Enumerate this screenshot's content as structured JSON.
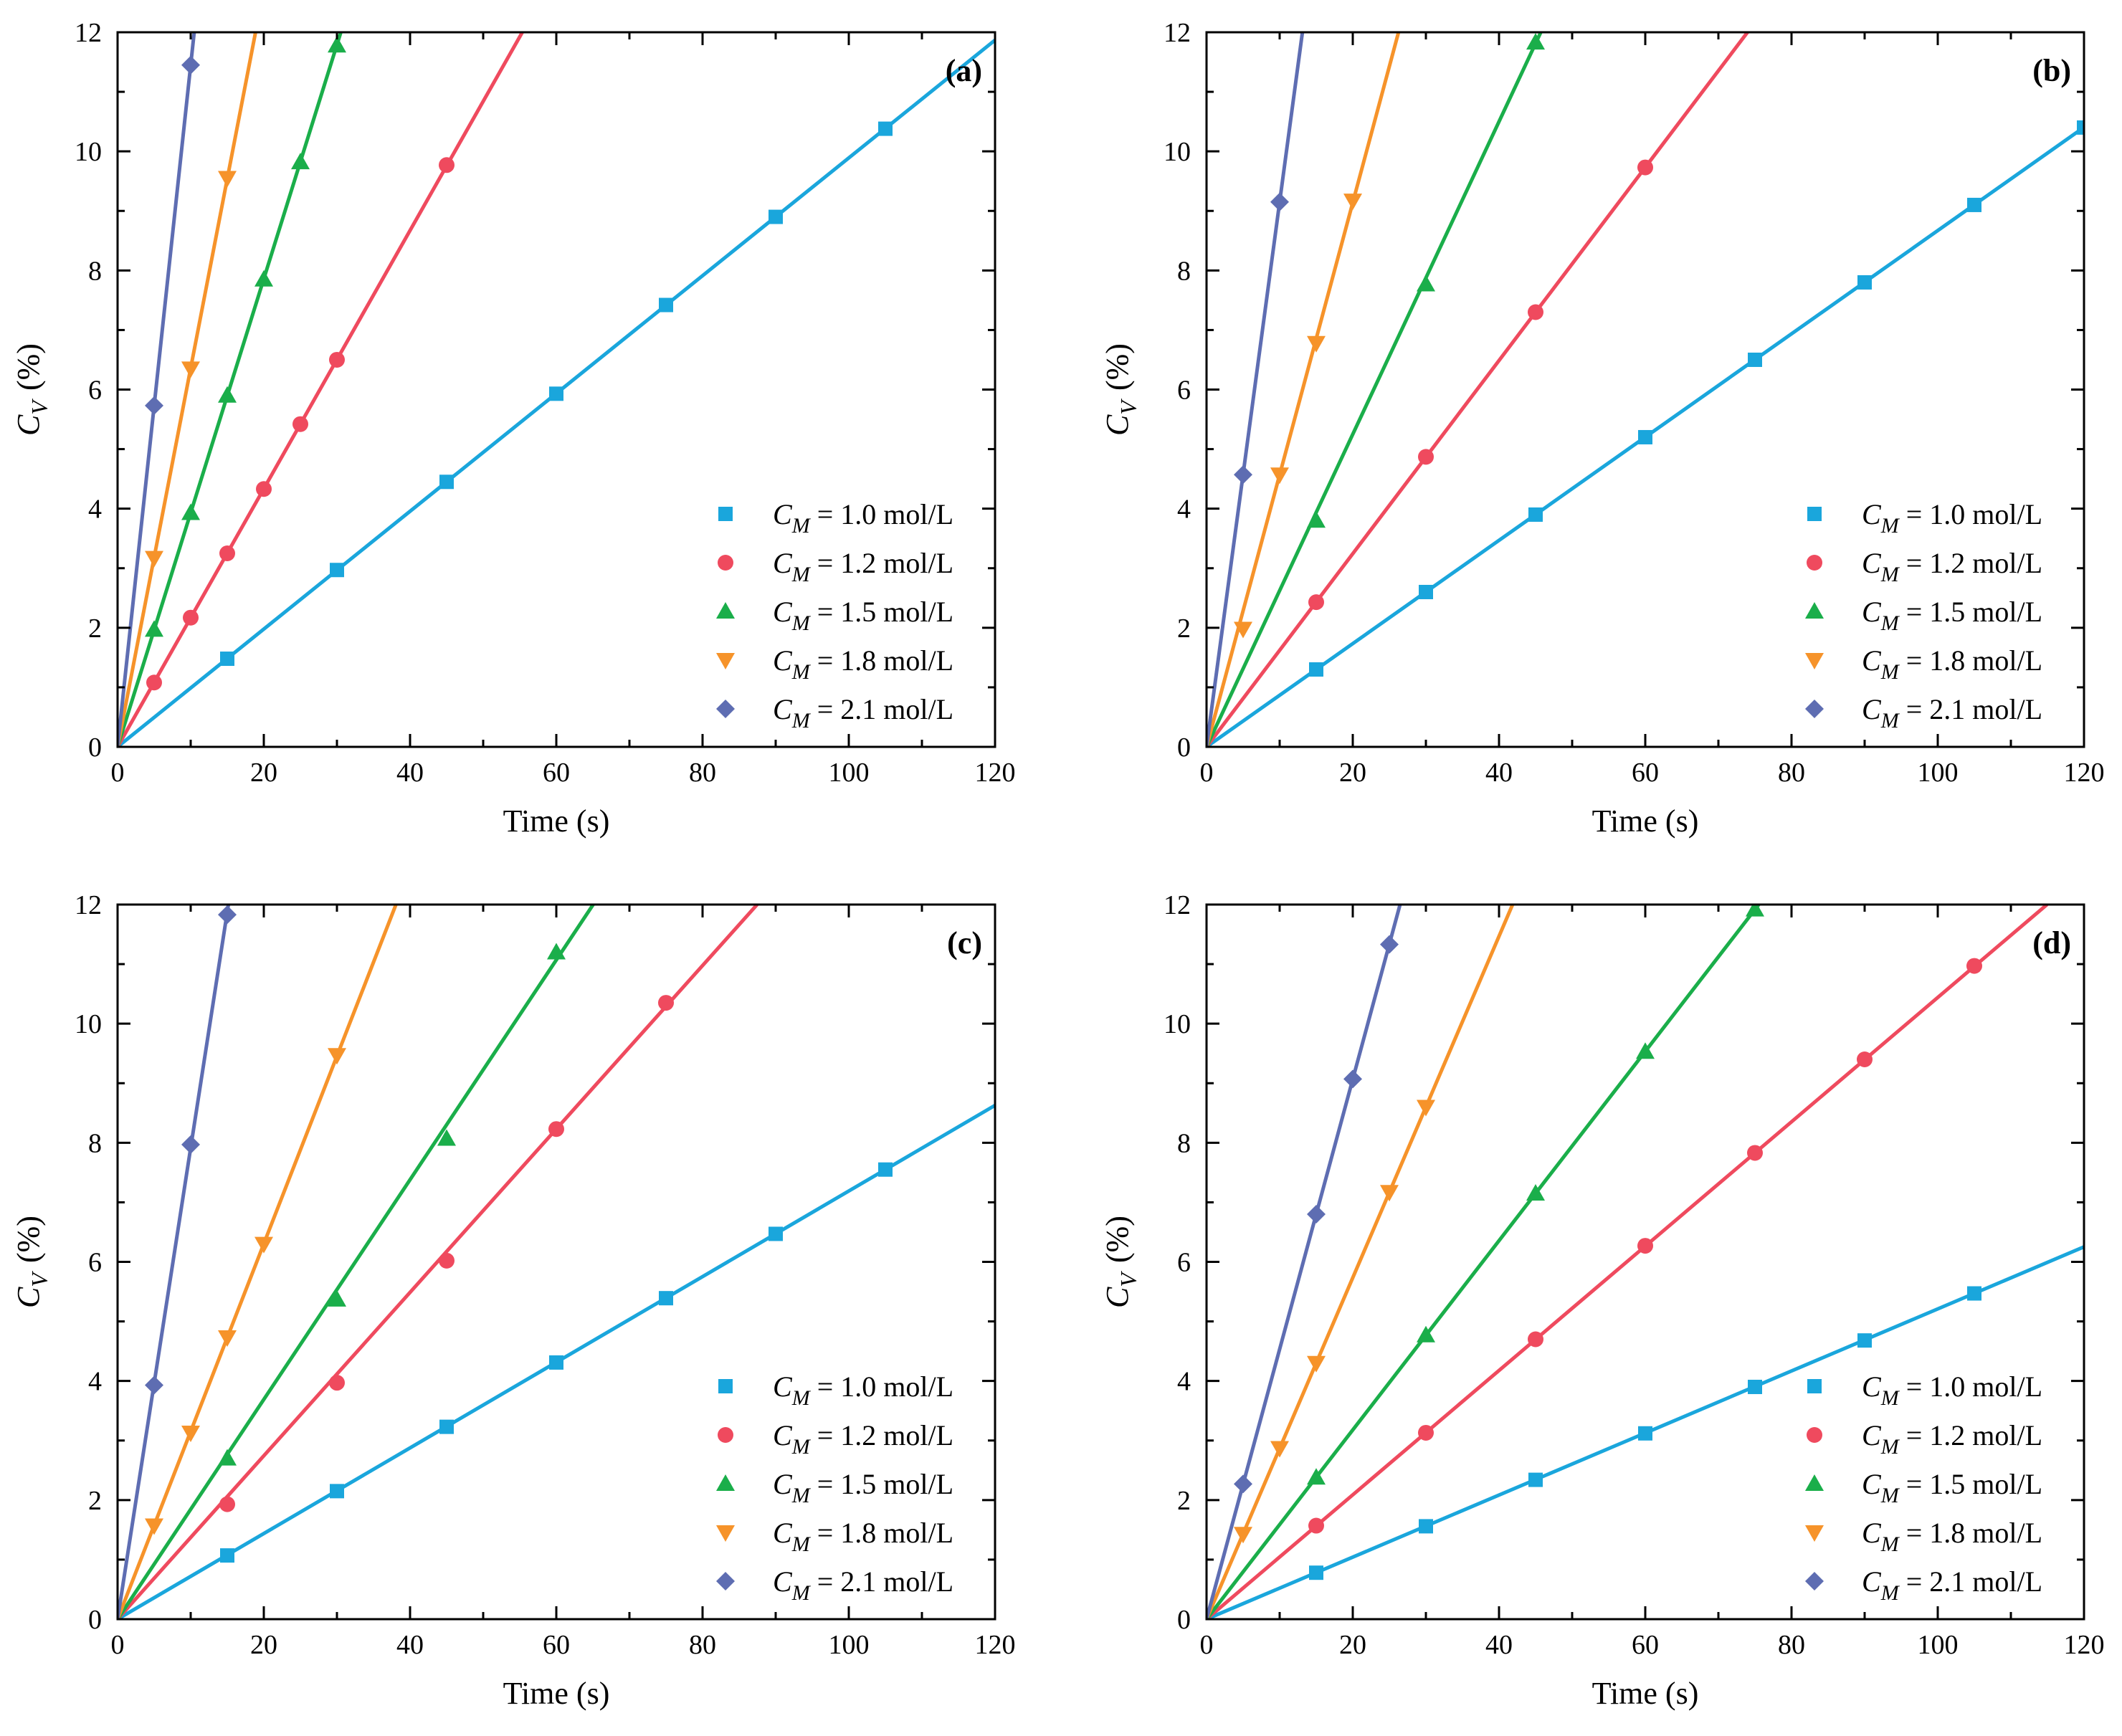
{
  "colors": {
    "1.0": "#1aa6dc",
    "1.2": "#ef4a5e",
    "1.5": "#1aae4a",
    "1.8": "#f6932a",
    "2.1": "#5e6db2"
  },
  "legend_entries": [
    {
      "prefix": "C",
      "sub": "M",
      "text": " = 1.0 mol/L",
      "key": "1.0",
      "marker": "square"
    },
    {
      "prefix": "C",
      "sub": "M",
      "text": " = 1.2 mol/L",
      "key": "1.2",
      "marker": "circle"
    },
    {
      "prefix": "C",
      "sub": "M",
      "text": " = 1.5 mol/L",
      "key": "1.5",
      "marker": "triangle-up"
    },
    {
      "prefix": "C",
      "sub": "M",
      "text": " = 1.8 mol/L",
      "key": "1.8",
      "marker": "triangle-down"
    },
    {
      "prefix": "C",
      "sub": "M",
      "text": " = 2.1 mol/L",
      "key": "2.1",
      "marker": "diamond"
    }
  ],
  "chart_data": [
    {
      "type": "scatter",
      "title": "(a)",
      "xlabel": "Time (s)",
      "ylabel_var": "C",
      "ylabel_sub": "V",
      "ylabel_unit": "(%)",
      "xlim": [
        0,
        120
      ],
      "ylim": [
        0,
        12
      ],
      "xticks": [
        "0",
        "20",
        "40",
        "60",
        "80",
        "100",
        "120"
      ],
      "yticks": [
        "0",
        "2",
        "4",
        "6",
        "8",
        "10",
        "12"
      ],
      "series": [
        {
          "key": "1.0",
          "x": [
            15,
            30,
            45,
            60,
            75,
            90,
            105
          ],
          "y": [
            1.48,
            2.97,
            4.45,
            5.93,
            7.42,
            8.9,
            10.38
          ],
          "slope": 0.0989
        },
        {
          "key": "1.2",
          "x": [
            5,
            10,
            15,
            20,
            25,
            30,
            45
          ],
          "y": [
            1.08,
            2.17,
            3.25,
            4.33,
            5.42,
            6.5,
            9.77
          ],
          "slope": 0.2168
        },
        {
          "key": "1.5",
          "x": [
            5,
            10,
            15,
            20,
            25,
            30
          ],
          "y": [
            1.97,
            3.93,
            5.9,
            7.85,
            9.82,
            11.78
          ],
          "slope": 0.393
        },
        {
          "key": "1.8",
          "x": [
            5,
            10,
            15
          ],
          "y": [
            3.17,
            6.35,
            9.55
          ],
          "slope": 0.636
        },
        {
          "key": "2.1",
          "x": [
            5,
            10
          ],
          "y": [
            5.73,
            11.45
          ],
          "slope": 1.145
        }
      ]
    },
    {
      "type": "scatter",
      "title": "(b)",
      "xlabel": "Time (s)",
      "ylabel_var": "C",
      "ylabel_sub": "V",
      "ylabel_unit": "(%)",
      "xlim": [
        0,
        120
      ],
      "ylim": [
        0,
        12
      ],
      "xticks": [
        "0",
        "20",
        "40",
        "60",
        "80",
        "100",
        "120"
      ],
      "yticks": [
        "0",
        "2",
        "4",
        "6",
        "8",
        "10",
        "12"
      ],
      "series": [
        {
          "key": "1.0",
          "x": [
            15,
            30,
            45,
            60,
            75,
            90,
            105,
            120
          ],
          "y": [
            1.3,
            2.6,
            3.9,
            5.2,
            6.5,
            7.8,
            9.1,
            10.4
          ],
          "slope": 0.0867
        },
        {
          "key": "1.2",
          "x": [
            15,
            30,
            45,
            60
          ],
          "y": [
            2.43,
            4.87,
            7.3,
            9.73
          ],
          "slope": 0.1622
        },
        {
          "key": "1.5",
          "x": [
            15,
            30,
            45
          ],
          "y": [
            3.8,
            7.77,
            11.83
          ],
          "slope": 0.2625
        },
        {
          "key": "1.8",
          "x": [
            5,
            10,
            15,
            20
          ],
          "y": [
            1.98,
            4.57,
            6.78,
            9.17
          ],
          "slope": 0.457
        },
        {
          "key": "2.1",
          "x": [
            5,
            10
          ],
          "y": [
            4.57,
            9.15
          ],
          "slope": 0.915
        }
      ]
    },
    {
      "type": "scatter",
      "title": "(c)",
      "xlabel": "Time (s)",
      "ylabel_var": "C",
      "ylabel_sub": "V",
      "ylabel_unit": "(%)",
      "xlim": [
        0,
        120
      ],
      "ylim": [
        0,
        12
      ],
      "xticks": [
        "0",
        "20",
        "40",
        "60",
        "80",
        "100",
        "120"
      ],
      "yticks": [
        "0",
        "2",
        "4",
        "6",
        "8",
        "10",
        "12"
      ],
      "series": [
        {
          "key": "1.0",
          "x": [
            15,
            30,
            45,
            60,
            75,
            90,
            105
          ],
          "y": [
            1.07,
            2.15,
            3.23,
            4.31,
            5.39,
            6.47,
            7.55
          ],
          "slope": 0.0719
        },
        {
          "key": "1.2",
          "x": [
            15,
            30,
            45,
            60,
            75
          ],
          "y": [
            1.93,
            3.97,
            6.02,
            8.23,
            10.35
          ],
          "slope": 0.1372
        },
        {
          "key": "1.5",
          "x": [
            15,
            30,
            45,
            60
          ],
          "y": [
            2.7,
            5.37,
            8.07,
            11.2
          ],
          "slope": 0.1845
        },
        {
          "key": "1.8",
          "x": [
            5,
            10,
            15,
            20,
            30
          ],
          "y": [
            1.57,
            3.13,
            4.73,
            6.3,
            9.47
          ],
          "slope": 0.3152
        },
        {
          "key": "2.1",
          "x": [
            5,
            10,
            15
          ],
          "y": [
            3.93,
            7.97,
            11.83
          ],
          "slope": 0.7917
        }
      ]
    },
    {
      "type": "scatter",
      "title": "(d)",
      "xlabel": "Time (s)",
      "ylabel_var": "C",
      "ylabel_sub": "V",
      "ylabel_unit": "(%)",
      "xlim": [
        0,
        120
      ],
      "ylim": [
        0,
        12
      ],
      "xticks": [
        "0",
        "20",
        "40",
        "60",
        "80",
        "100",
        "120"
      ],
      "yticks": [
        "0",
        "2",
        "4",
        "6",
        "8",
        "10",
        "12"
      ],
      "series": [
        {
          "key": "1.0",
          "x": [
            15,
            30,
            45,
            60,
            75,
            90,
            105
          ],
          "y": [
            0.78,
            1.56,
            2.34,
            3.12,
            3.9,
            4.68,
            5.47
          ],
          "slope": 0.0521
        },
        {
          "key": "1.2",
          "x": [
            15,
            30,
            45,
            60,
            75,
            90,
            105
          ],
          "y": [
            1.57,
            3.13,
            4.7,
            6.27,
            7.83,
            9.4,
            10.97
          ],
          "slope": 0.1044
        },
        {
          "key": "1.5",
          "x": [
            15,
            30,
            45,
            60,
            75
          ],
          "y": [
            2.38,
            4.77,
            7.15,
            9.53,
            11.92
          ],
          "slope": 0.1589
        },
        {
          "key": "1.8",
          "x": [
            5,
            10,
            15,
            25,
            30
          ],
          "y": [
            1.43,
            2.87,
            4.3,
            7.17,
            8.6
          ],
          "slope": 0.2867
        },
        {
          "key": "2.1",
          "x": [
            5,
            15,
            20,
            25
          ],
          "y": [
            2.27,
            6.8,
            9.07,
            11.33
          ],
          "slope": 0.4534
        }
      ]
    }
  ]
}
